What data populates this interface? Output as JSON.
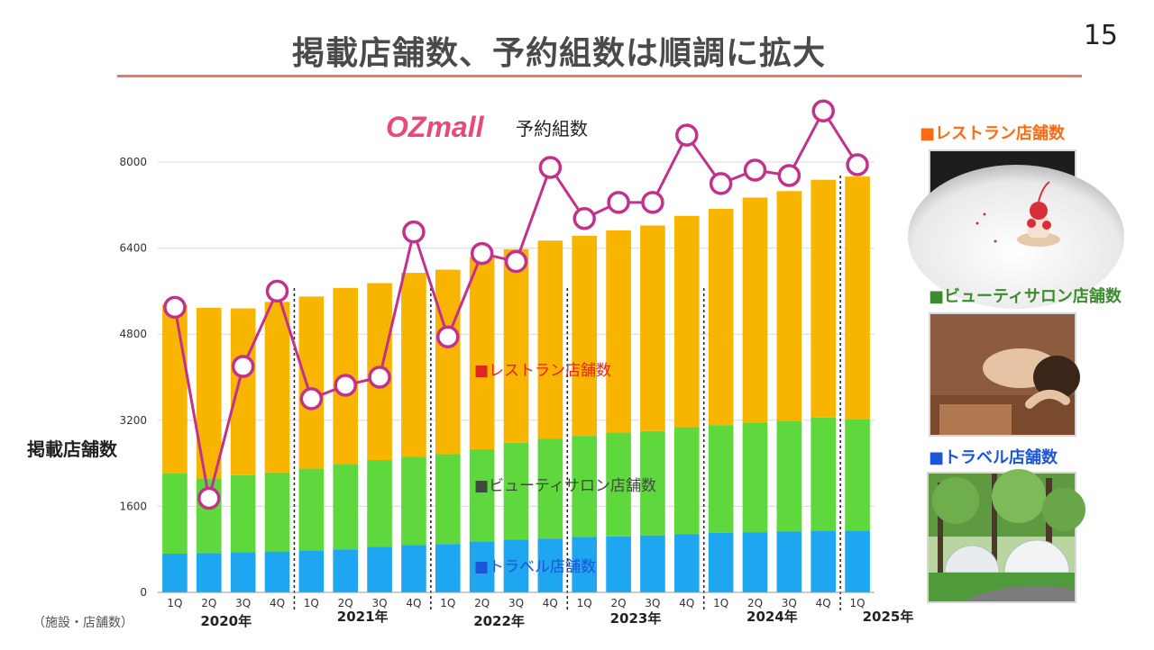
{
  "slide": {
    "title": "掲載店舗数、予約組数は順調に拡大",
    "page_number": "15"
  },
  "brand": {
    "logo_text": "OZmall",
    "logo_color": "#e84a78"
  },
  "chart_data": {
    "type": "bar",
    "stacked": true,
    "categories": [
      "1Q",
      "2Q",
      "3Q",
      "4Q",
      "1Q",
      "2Q",
      "3Q",
      "4Q",
      "1Q",
      "2Q",
      "3Q",
      "4Q",
      "1Q",
      "2Q",
      "3Q",
      "4Q",
      "1Q",
      "2Q",
      "3Q",
      "4Q",
      "1Q"
    ],
    "year_groups": [
      {
        "label": "2020年",
        "start": 0,
        "count": 4
      },
      {
        "label": "2021年",
        "start": 4,
        "count": 4
      },
      {
        "label": "2022年",
        "start": 8,
        "count": 4
      },
      {
        "label": "2023年",
        "start": 12,
        "count": 4
      },
      {
        "label": "2024年",
        "start": 16,
        "count": 4
      },
      {
        "label": "2025年",
        "start": 20,
        "count": 1
      }
    ],
    "series": [
      {
        "name": "トラベル店舗数",
        "color": "#1ea7f0",
        "values": [
          720,
          730,
          750,
          760,
          780,
          800,
          850,
          880,
          900,
          950,
          980,
          1000,
          1030,
          1040,
          1060,
          1080,
          1110,
          1120,
          1130,
          1150,
          1150
        ]
      },
      {
        "name": "ビューティサロン店舗数",
        "color": "#5ed83c",
        "values": [
          1490,
          1390,
          1430,
          1470,
          1520,
          1590,
          1610,
          1640,
          1670,
          1710,
          1800,
          1860,
          1880,
          1930,
          1940,
          1990,
          2000,
          2040,
          2060,
          2100,
          2070
        ]
      },
      {
        "name": "レストラン店舗数",
        "color": "#f7b500",
        "values": [
          3140,
          3170,
          3100,
          3170,
          3200,
          3270,
          3290,
          3420,
          3430,
          3570,
          3600,
          3680,
          3720,
          3760,
          3820,
          3930,
          4020,
          4180,
          4270,
          4420,
          4510
        ]
      }
    ],
    "line_series": {
      "name": "予約組数",
      "color": "#c2318a",
      "values": [
        5300,
        1750,
        4200,
        5600,
        3600,
        3850,
        4000,
        6700,
        4750,
        6300,
        6150,
        7900,
        6950,
        7250,
        7250,
        8500,
        7600,
        7850,
        7750,
        8950,
        7950
      ]
    },
    "y_ticks": [
      0,
      1600,
      3200,
      4800,
      6400,
      8000
    ],
    "ylim": [
      0,
      8600
    ],
    "ylabel": "掲載店舗数",
    "yunit": "（施設・店舗数）",
    "line_label": "予約組数",
    "inline_labels": [
      {
        "text": "■レストラン店舗数",
        "color": "#e0261d"
      },
      {
        "text": "■ビューティサロン店舗数",
        "color": "#3e4a3e"
      },
      {
        "text": "■トラベル店舗数",
        "color": "#1a56d6"
      }
    ],
    "grid": true
  },
  "side_panel": [
    {
      "label": "■レストラン店舗数",
      "color": "#ff6a13",
      "icon": "dessert-photo"
    },
    {
      "label": "■ビューティサロン店舗数",
      "color": "#3d8b2f",
      "icon": "spa-photo"
    },
    {
      "label": "■トラベル店舗数",
      "color": "#1a56d6",
      "icon": "glamping-photo"
    }
  ]
}
